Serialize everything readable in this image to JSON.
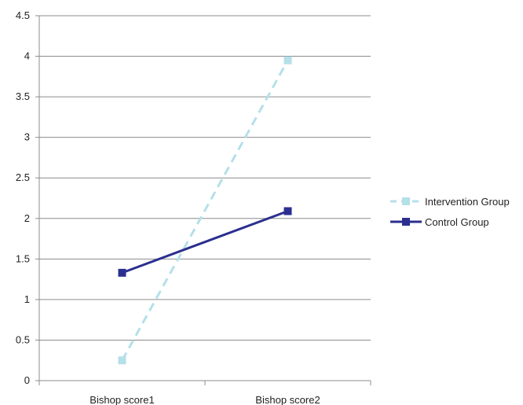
{
  "chart_data": {
    "type": "line",
    "categories": [
      "Bishop score1",
      "Bishop score2"
    ],
    "series": [
      {
        "name": "Intervention Group",
        "values": [
          0.25,
          3.95
        ],
        "color": "#b4e0e8",
        "dash": "dashed",
        "marker": "square"
      },
      {
        "name": "Control Group",
        "values": [
          1.33,
          2.09
        ],
        "color": "#2b2f8f",
        "dash": "solid",
        "marker": "square"
      }
    ],
    "ylim": [
      0,
      4.5
    ],
    "yticks": [
      "0",
      "0.5",
      "1",
      "1.5",
      "2",
      "2.5",
      "3",
      "3.5",
      "4",
      "4.5"
    ],
    "ytick_values": [
      0,
      0.5,
      1,
      1.5,
      2,
      2.5,
      3,
      3.5,
      4,
      4.5
    ],
    "grid": true,
    "legend": "right",
    "title": "",
    "xlabel": "",
    "ylabel": ""
  }
}
